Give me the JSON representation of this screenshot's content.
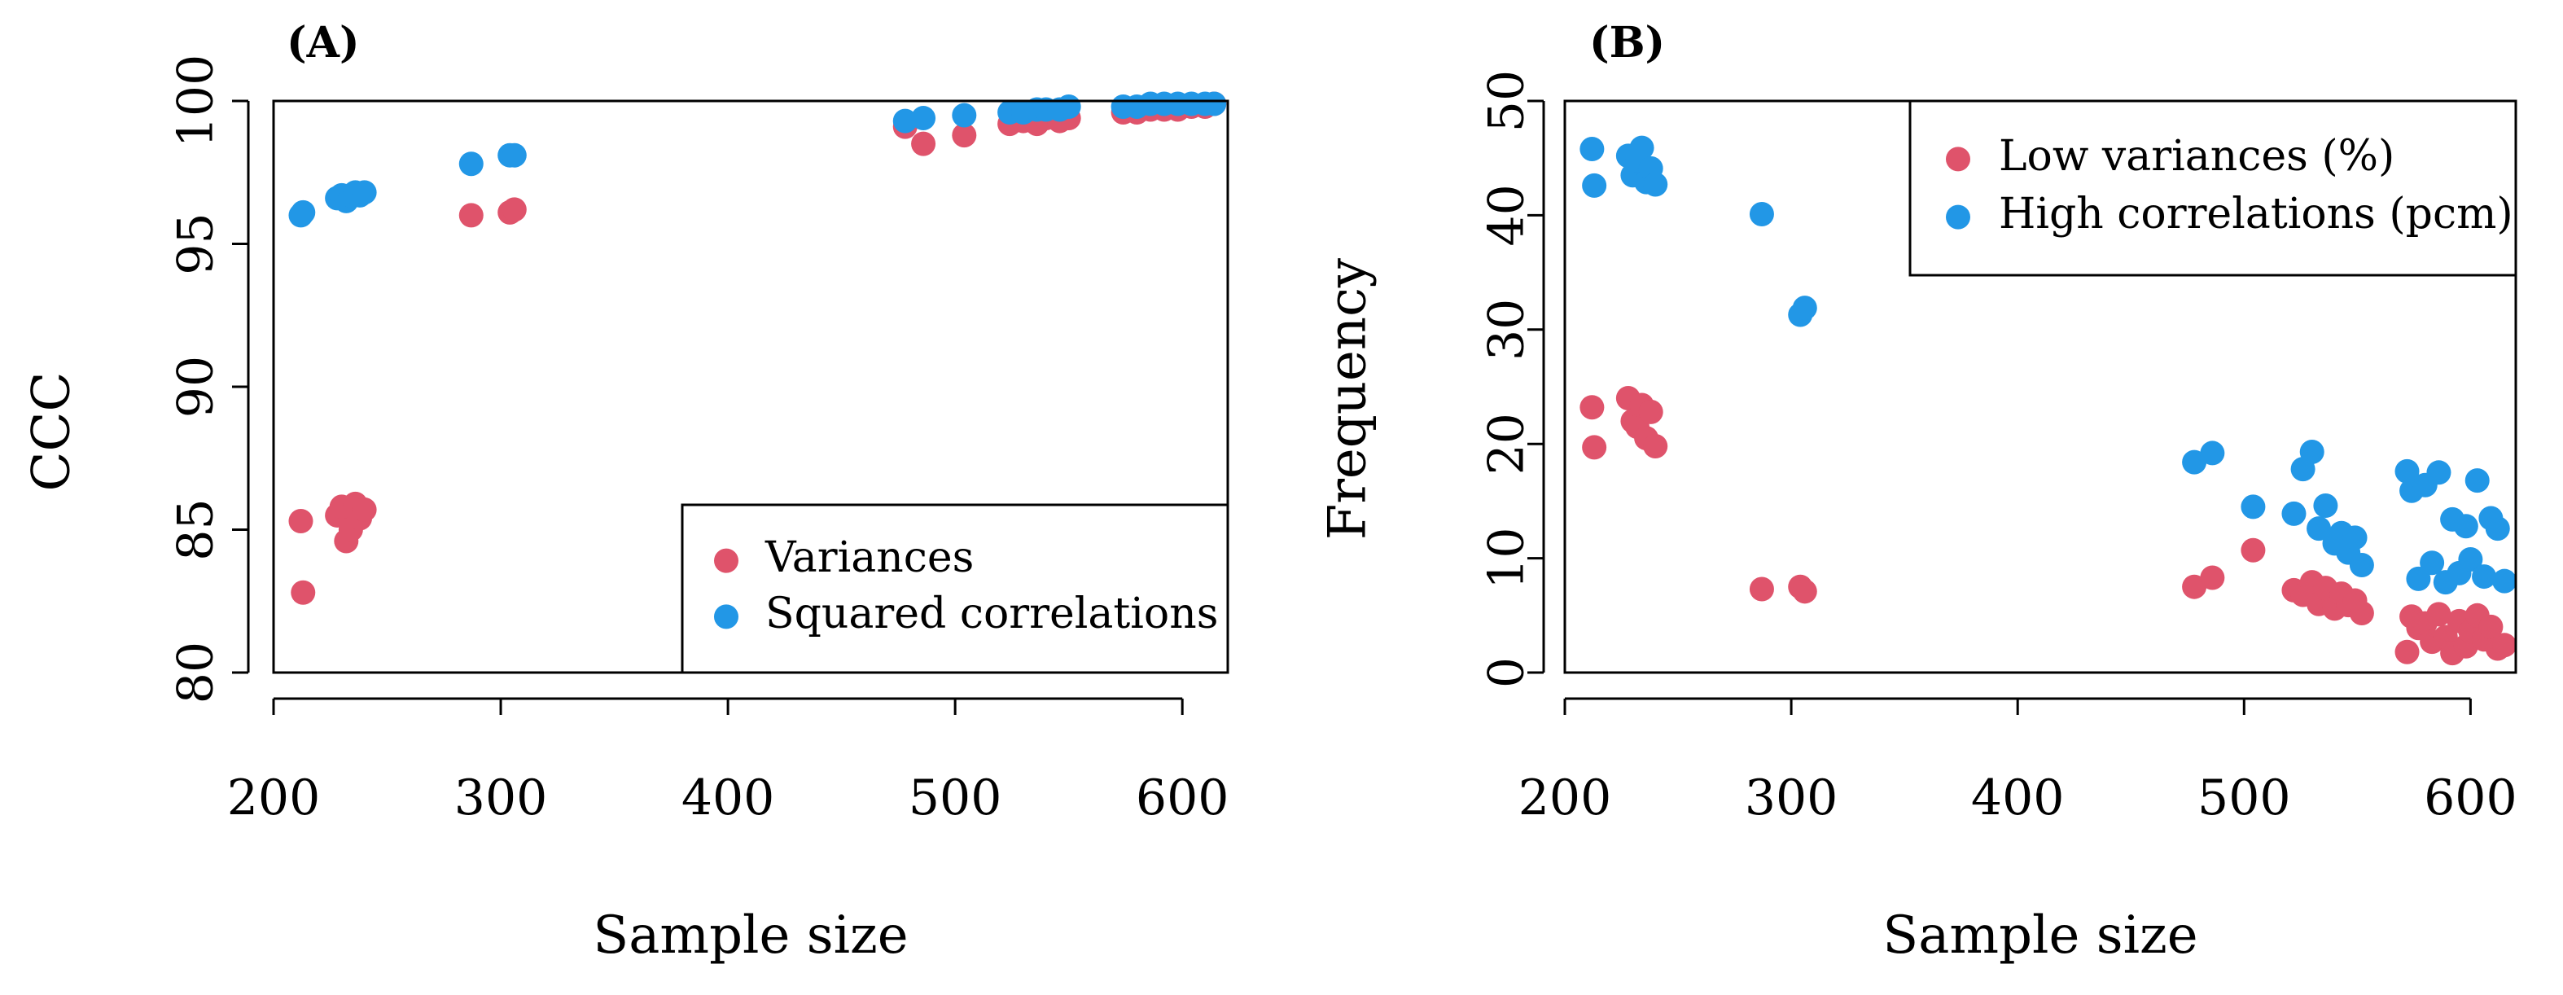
{
  "colors": {
    "variances": "#DF536B",
    "correlations": "#2297E6",
    "axis": "#000000",
    "background": "#FFFFFF"
  },
  "chart_data": [
    {
      "id": "A",
      "type": "scatter",
      "panel_label": "(A)",
      "title": "",
      "xlabel": "Sample size",
      "ylabel": "CCC",
      "xlim": [
        200,
        620
      ],
      "ylim": [
        80,
        100
      ],
      "xticks": [
        200,
        300,
        400,
        500,
        600
      ],
      "yticks": [
        80,
        85,
        90,
        95,
        100
      ],
      "legend_position": "bottom-right",
      "series": [
        {
          "name": "Variances",
          "color_key": "variances",
          "points": [
            [
              212,
              85.3
            ],
            [
              213,
              82.8
            ],
            [
              228,
              85.5
            ],
            [
              230,
              85.8
            ],
            [
              232,
              84.6
            ],
            [
              234,
              85.0
            ],
            [
              236,
              85.9
            ],
            [
              238,
              85.4
            ],
            [
              240,
              85.7
            ],
            [
              287,
              96.0
            ],
            [
              304,
              96.1
            ],
            [
              306,
              96.2
            ],
            [
              478,
              99.1
            ],
            [
              486,
              98.5
            ],
            [
              504,
              98.8
            ],
            [
              524,
              99.2
            ],
            [
              530,
              99.3
            ],
            [
              536,
              99.2
            ],
            [
              540,
              99.4
            ],
            [
              546,
              99.3
            ],
            [
              550,
              99.4
            ],
            [
              574,
              99.6
            ],
            [
              580,
              99.6
            ],
            [
              586,
              99.7
            ],
            [
              592,
              99.7
            ],
            [
              598,
              99.7
            ],
            [
              604,
              99.8
            ],
            [
              610,
              99.8
            ],
            [
              614,
              99.9
            ]
          ]
        },
        {
          "name": "Squared correlations",
          "color_key": "correlations",
          "points": [
            [
              212,
              96.0
            ],
            [
              213,
              96.1
            ],
            [
              228,
              96.6
            ],
            [
              230,
              96.7
            ],
            [
              232,
              96.5
            ],
            [
              234,
              96.7
            ],
            [
              236,
              96.8
            ],
            [
              238,
              96.7
            ],
            [
              240,
              96.8
            ],
            [
              287,
              97.8
            ],
            [
              304,
              98.1
            ],
            [
              306,
              98.1
            ],
            [
              478,
              99.3
            ],
            [
              486,
              99.4
            ],
            [
              504,
              99.5
            ],
            [
              524,
              99.6
            ],
            [
              530,
              99.6
            ],
            [
              536,
              99.7
            ],
            [
              540,
              99.7
            ],
            [
              546,
              99.7
            ],
            [
              550,
              99.8
            ],
            [
              574,
              99.8
            ],
            [
              580,
              99.8
            ],
            [
              586,
              99.9
            ],
            [
              592,
              99.9
            ],
            [
              598,
              99.9
            ],
            [
              604,
              99.9
            ],
            [
              610,
              99.9
            ],
            [
              614,
              99.9
            ]
          ]
        }
      ]
    },
    {
      "id": "B",
      "type": "scatter",
      "panel_label": "(B)",
      "title": "",
      "xlabel": "Sample size",
      "ylabel": "Frequency",
      "xlim": [
        200,
        620
      ],
      "ylim": [
        0,
        50
      ],
      "xticks": [
        200,
        300,
        400,
        500,
        600
      ],
      "yticks": [
        0,
        10,
        20,
        30,
        40,
        50
      ],
      "legend_position": "top-right",
      "series": [
        {
          "name": "Low variances (%)",
          "color_key": "variances",
          "points": [
            [
              212,
              23.2
            ],
            [
              213,
              19.7
            ],
            [
              228,
              24.0
            ],
            [
              230,
              22.0
            ],
            [
              232,
              21.5
            ],
            [
              234,
              23.4
            ],
            [
              236,
              20.5
            ],
            [
              238,
              22.8
            ],
            [
              240,
              19.8
            ],
            [
              287,
              7.3
            ],
            [
              304,
              7.5
            ],
            [
              306,
              7.1
            ],
            [
              478,
              7.5
            ],
            [
              486,
              8.3
            ],
            [
              504,
              10.7
            ],
            [
              522,
              7.2
            ],
            [
              526,
              6.8
            ],
            [
              530,
              7.9
            ],
            [
              533,
              6.0
            ],
            [
              536,
              7.4
            ],
            [
              540,
              5.6
            ],
            [
              543,
              6.9
            ],
            [
              546,
              5.9
            ],
            [
              549,
              6.3
            ],
            [
              552,
              5.2
            ],
            [
              572,
              1.8
            ],
            [
              574,
              4.9
            ],
            [
              577,
              3.9
            ],
            [
              580,
              4.3
            ],
            [
              583,
              2.7
            ],
            [
              586,
              5.1
            ],
            [
              589,
              3.1
            ],
            [
              592,
              1.7
            ],
            [
              595,
              4.5
            ],
            [
              598,
              2.3
            ],
            [
              600,
              3.6
            ],
            [
              603,
              5.0
            ],
            [
              606,
              2.9
            ],
            [
              609,
              4.0
            ],
            [
              612,
              2.1
            ],
            [
              615,
              2.4
            ]
          ]
        },
        {
          "name": "High correlations (pcm)",
          "color_key": "correlations",
          "points": [
            [
              212,
              45.8
            ],
            [
              213,
              42.6
            ],
            [
              228,
              45.2
            ],
            [
              230,
              43.5
            ],
            [
              232,
              44.8
            ],
            [
              234,
              45.9
            ],
            [
              236,
              42.9
            ],
            [
              238,
              44.1
            ],
            [
              240,
              42.7
            ],
            [
              287,
              40.1
            ],
            [
              304,
              31.3
            ],
            [
              306,
              31.9
            ],
            [
              478,
              18.4
            ],
            [
              486,
              19.2
            ],
            [
              504,
              14.5
            ],
            [
              522,
              13.9
            ],
            [
              526,
              17.8
            ],
            [
              530,
              19.3
            ],
            [
              533,
              12.6
            ],
            [
              536,
              14.6
            ],
            [
              540,
              11.3
            ],
            [
              543,
              12.2
            ],
            [
              546,
              10.5
            ],
            [
              549,
              11.8
            ],
            [
              552,
              9.4
            ],
            [
              572,
              17.6
            ],
            [
              574,
              15.9
            ],
            [
              577,
              8.2
            ],
            [
              580,
              16.4
            ],
            [
              583,
              9.6
            ],
            [
              586,
              17.5
            ],
            [
              589,
              7.9
            ],
            [
              592,
              13.4
            ],
            [
              595,
              8.7
            ],
            [
              598,
              12.8
            ],
            [
              600,
              9.9
            ],
            [
              603,
              16.8
            ],
            [
              606,
              8.4
            ],
            [
              609,
              13.5
            ],
            [
              612,
              12.6
            ],
            [
              615,
              8.0
            ]
          ]
        }
      ]
    }
  ]
}
